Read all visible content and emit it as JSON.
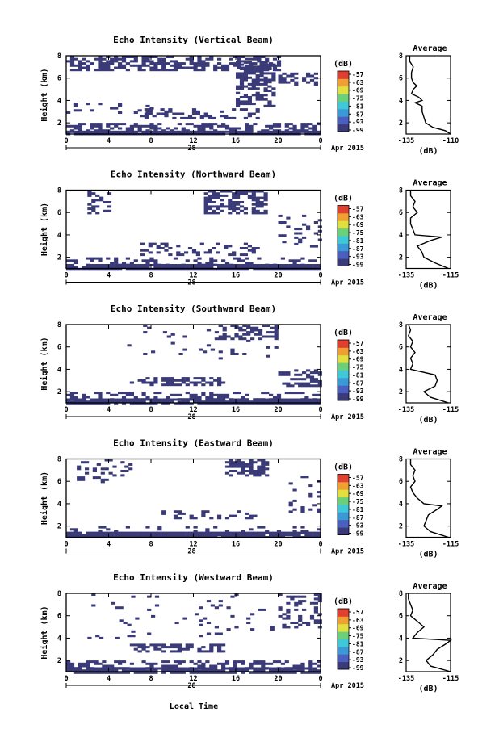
{
  "figure": {
    "xlabel": "Local Time",
    "date_label": "Apr 2015",
    "colorbar_unit": "(dB)",
    "colorbar_ticks": [
      "-57",
      "-63",
      "-69",
      "-75",
      "-81",
      "-87",
      "-93",
      "-99"
    ],
    "colors": {
      "echo": "#3a3a78",
      "colorbar": [
        "#3a3a78",
        "#4a5fc0",
        "#3a9ad8",
        "#3ec8d8",
        "#6ad07a",
        "#e0e040",
        "#f0a030",
        "#e04030"
      ]
    }
  },
  "chart_data": [
    {
      "type": "heatmap",
      "title": "Echo Intensity (Vertical Beam)",
      "ylabel": "Height (km)",
      "xlim": [
        0,
        24
      ],
      "ylim": [
        1,
        8
      ],
      "xticks": [
        "0",
        "4",
        "8",
        "12",
        "16",
        "20",
        "0"
      ],
      "xtick_values": [
        0,
        4,
        8,
        12,
        16,
        20,
        24
      ],
      "day_label": "28",
      "yticks": [
        2,
        4,
        6,
        8
      ],
      "bands": [
        {
          "x0": 0,
          "x1": 24,
          "y0": 1.0,
          "y1": 1.3,
          "density": 0.95
        },
        {
          "x0": 0,
          "x1": 24,
          "y0": 1.3,
          "y1": 2.0,
          "density": 0.5
        },
        {
          "x0": 0,
          "x1": 8,
          "y0": 3.0,
          "y1": 3.8,
          "density": 0.15
        },
        {
          "x0": 7,
          "x1": 18,
          "y0": 2.5,
          "y1": 3.3,
          "density": 0.4
        },
        {
          "x0": 0,
          "x1": 20,
          "y0": 6.8,
          "y1": 8.0,
          "density": 0.55
        },
        {
          "x0": 16,
          "x1": 19.5,
          "y0": 3.5,
          "y1": 7.5,
          "density": 0.55
        },
        {
          "x0": 20,
          "x1": 24,
          "y0": 5.5,
          "y1": 6.5,
          "density": 0.3
        }
      ],
      "profile": {
        "heights": [
          1.0,
          1.3,
          1.6,
          2.0,
          2.5,
          3.0,
          3.5,
          3.8,
          4.0,
          4.3,
          4.6,
          5.0,
          5.3,
          5.6,
          6.0,
          6.5,
          7.0,
          7.5,
          8.0
        ],
        "values": [
          -110,
          -113,
          -120,
          -124,
          -125,
          -126,
          -126,
          -130,
          -126,
          -128,
          -132,
          -131,
          -129,
          -131,
          -132,
          -132,
          -131,
          -133,
          -133
        ]
      },
      "profile_title": "Average",
      "profile_xlabel": "(dB)",
      "profile_xticks": [
        "-135",
        "-110"
      ],
      "profile_xlim": [
        -135,
        -110
      ]
    },
    {
      "type": "heatmap",
      "title": "Echo Intensity (Northward Beam)",
      "ylabel": "Height (km)",
      "xlim": [
        0,
        24
      ],
      "ylim": [
        1,
        8
      ],
      "xticks": [
        "0",
        "4",
        "8",
        "12",
        "16",
        "20",
        "0"
      ],
      "xtick_values": [
        0,
        4,
        8,
        12,
        16,
        20,
        24
      ],
      "day_label": "28",
      "yticks": [
        2,
        4,
        6,
        8
      ],
      "bands": [
        {
          "x0": 0,
          "x1": 24,
          "y0": 1.0,
          "y1": 1.4,
          "density": 0.95
        },
        {
          "x0": 0,
          "x1": 24,
          "y0": 1.4,
          "y1": 2.0,
          "density": 0.25
        },
        {
          "x0": 7,
          "x1": 18,
          "y0": 2.3,
          "y1": 3.3,
          "density": 0.3
        },
        {
          "x0": 2,
          "x1": 4,
          "y0": 6.0,
          "y1": 8.0,
          "density": 0.4
        },
        {
          "x0": 13,
          "x1": 19,
          "y0": 6.0,
          "y1": 8.0,
          "density": 0.6
        },
        {
          "x0": 20,
          "x1": 24,
          "y0": 3.0,
          "y1": 6.0,
          "density": 0.12
        }
      ],
      "profile": {
        "heights": [
          1.0,
          1.5,
          2.0,
          2.5,
          3.0,
          3.5,
          3.8,
          4.0,
          4.5,
          5.0,
          5.5,
          6.0,
          6.5,
          7.0,
          7.5,
          8.0
        ],
        "values": [
          -116,
          -122,
          -127,
          -128,
          -130,
          -124,
          -119,
          -131,
          -132,
          -133,
          -133,
          -130,
          -132,
          -131,
          -133,
          -133
        ]
      },
      "profile_title": "Average",
      "profile_xlabel": "(dB)",
      "profile_xticks": [
        "-135",
        "-115"
      ],
      "profile_xlim": [
        -135,
        -115
      ]
    },
    {
      "type": "heatmap",
      "title": "Echo Intensity (Southward Beam)",
      "ylabel": "Height (km)",
      "xlim": [
        0,
        24
      ],
      "ylim": [
        1,
        8
      ],
      "xticks": [
        "0",
        "4",
        "8",
        "12",
        "16",
        "20",
        "0"
      ],
      "xtick_values": [
        0,
        4,
        8,
        12,
        16,
        20,
        24
      ],
      "day_label": "28",
      "yticks": [
        2,
        4,
        6,
        8
      ],
      "bands": [
        {
          "x0": 0,
          "x1": 24,
          "y0": 1.0,
          "y1": 1.4,
          "density": 0.95
        },
        {
          "x0": 0,
          "x1": 24,
          "y0": 1.4,
          "y1": 2.0,
          "density": 0.4
        },
        {
          "x0": 6,
          "x1": 15,
          "y0": 2.6,
          "y1": 3.3,
          "density": 0.5
        },
        {
          "x0": 14,
          "x1": 20,
          "y0": 6.8,
          "y1": 8.0,
          "density": 0.5
        },
        {
          "x0": 20,
          "x1": 24,
          "y0": 2.5,
          "y1": 4.0,
          "density": 0.4
        },
        {
          "x0": 5,
          "x1": 20,
          "y0": 5.0,
          "y1": 8.0,
          "density": 0.06
        }
      ],
      "profile": {
        "heights": [
          1.0,
          1.5,
          2.0,
          2.5,
          3.0,
          3.5,
          4.0,
          4.5,
          5.0,
          5.5,
          6.0,
          6.5,
          7.0,
          7.5,
          8.0
        ],
        "values": [
          -116,
          -124,
          -127,
          -122,
          -121,
          -122,
          -133,
          -132,
          -133,
          -131,
          -133,
          -132,
          -134,
          -133,
          -134
        ]
      },
      "profile_title": "Average",
      "profile_xlabel": "(dB)",
      "profile_xticks": [
        "-135",
        "-115"
      ],
      "profile_xlim": [
        -135,
        -115
      ]
    },
    {
      "type": "heatmap",
      "title": "Echo Intensity (Eastward Beam)",
      "ylabel": "Height (km)",
      "xlim": [
        0,
        24
      ],
      "ylim": [
        1,
        8
      ],
      "xticks": [
        "0",
        "4",
        "8",
        "12",
        "16",
        "20",
        "0"
      ],
      "xtick_values": [
        0,
        4,
        8,
        12,
        16,
        20,
        24
      ],
      "day_label": "28",
      "yticks": [
        2,
        4,
        6,
        8
      ],
      "bands": [
        {
          "x0": 0,
          "x1": 24,
          "y0": 1.0,
          "y1": 1.5,
          "density": 0.95
        },
        {
          "x0": 0,
          "x1": 24,
          "y0": 1.5,
          "y1": 2.0,
          "density": 0.15
        },
        {
          "x0": 9,
          "x1": 18,
          "y0": 2.8,
          "y1": 3.4,
          "density": 0.25
        },
        {
          "x0": 15,
          "x1": 19,
          "y0": 6.5,
          "y1": 8.0,
          "density": 0.6
        },
        {
          "x0": 1,
          "x1": 6,
          "y0": 6.0,
          "y1": 8.0,
          "density": 0.2
        },
        {
          "x0": 21,
          "x1": 24,
          "y0": 3.0,
          "y1": 6.5,
          "density": 0.15
        }
      ],
      "profile": {
        "heights": [
          1.0,
          1.5,
          2.0,
          2.5,
          3.0,
          3.5,
          3.8,
          4.0,
          4.5,
          5.0,
          5.5,
          6.0,
          6.5,
          7.0,
          7.5,
          8.0
        ],
        "values": [
          -116,
          -124,
          -127,
          -126,
          -125,
          -121,
          -119,
          -127,
          -130,
          -132,
          -133,
          -131,
          -132,
          -131,
          -133,
          -133
        ]
      },
      "profile_title": "Average",
      "profile_xlabel": "(dB)",
      "profile_xticks": [
        "-135",
        "-115"
      ],
      "profile_xlim": [
        -135,
        -115
      ]
    },
    {
      "type": "heatmap",
      "title": "Echo Intensity (Westward Beam)",
      "ylabel": "Height (km)",
      "xlim": [
        0,
        24
      ],
      "ylim": [
        1,
        8
      ],
      "xticks": [
        "0",
        "4",
        "8",
        "12",
        "16",
        "20",
        "0"
      ],
      "xtick_values": [
        0,
        4,
        8,
        12,
        16,
        20,
        24
      ],
      "day_label": "28",
      "yticks": [
        2,
        4,
        6,
        8
      ],
      "bands": [
        {
          "x0": 0,
          "x1": 24,
          "y0": 1.0,
          "y1": 1.4,
          "density": 0.9
        },
        {
          "x0": 0,
          "x1": 24,
          "y0": 1.4,
          "y1": 2.0,
          "density": 0.45
        },
        {
          "x0": 6,
          "x1": 15,
          "y0": 2.8,
          "y1": 3.5,
          "density": 0.5
        },
        {
          "x0": 20,
          "x1": 24,
          "y0": 5.0,
          "y1": 8.0,
          "density": 0.3
        },
        {
          "x0": 2,
          "x1": 20,
          "y0": 4.0,
          "y1": 8.0,
          "density": 0.05
        }
      ],
      "profile": {
        "heights": [
          1.0,
          1.5,
          2.0,
          2.5,
          3.0,
          3.5,
          3.8,
          4.0,
          4.5,
          5.0,
          5.5,
          6.0,
          6.5,
          7.0,
          7.5,
          8.0
        ],
        "values": [
          -115,
          -124,
          -126,
          -123,
          -121,
          -117,
          -115,
          -132,
          -130,
          -127,
          -130,
          -133,
          -132,
          -133,
          -134,
          -134
        ]
      },
      "profile_title": "Average",
      "profile_xlabel": "(dB)",
      "profile_xticks": [
        "-135",
        "-115"
      ],
      "profile_xlim": [
        -135,
        -115
      ]
    }
  ]
}
